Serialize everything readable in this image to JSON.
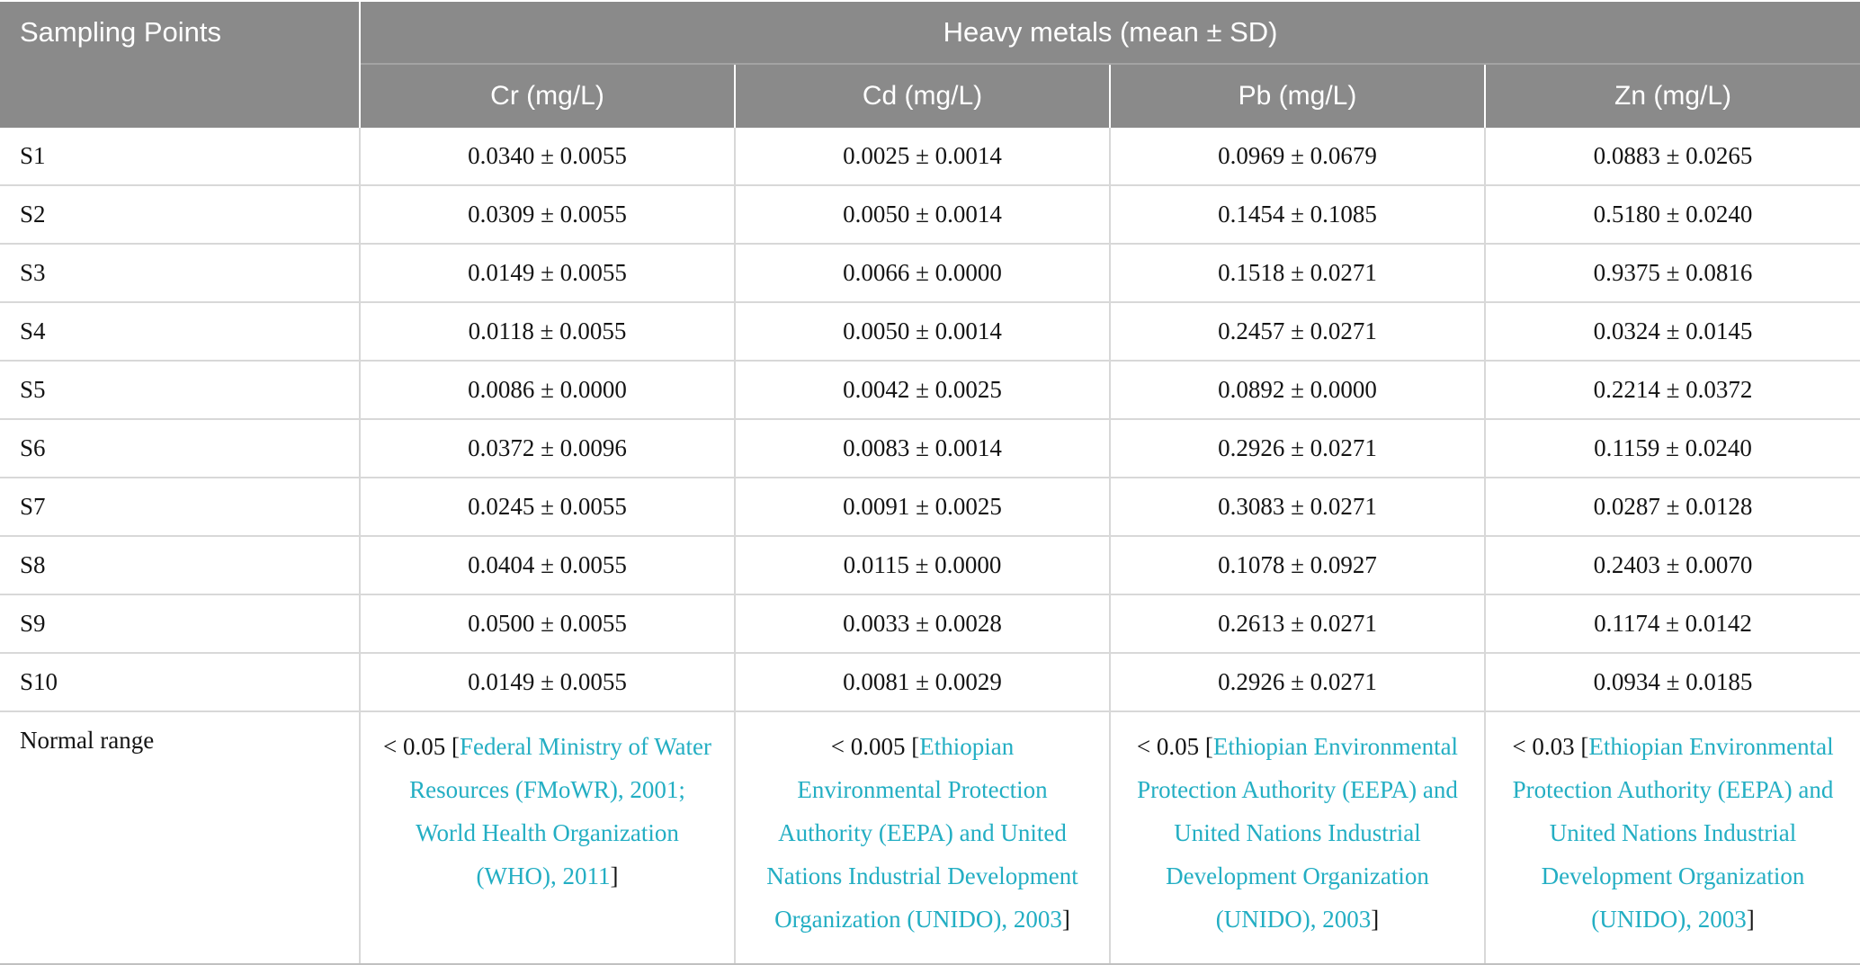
{
  "colors": {
    "header_bg": "#8a8a8a",
    "header_text": "#ffffff",
    "body_text": "#141414",
    "grid_line": "#d8d8d8",
    "reference_link": "#23aec3"
  },
  "table": {
    "header": {
      "sampling_points": "Sampling Points",
      "group": "Heavy metals (mean ± SD)",
      "columns": [
        "Cr (mg/L)",
        "Cd (mg/L)",
        "Pb (mg/L)",
        "Zn (mg/L)"
      ]
    },
    "rows": [
      {
        "label": "S1",
        "values": [
          "0.0340 ± 0.0055",
          "0.0025 ± 0.0014",
          "0.0969 ± 0.0679",
          "0.0883 ± 0.0265"
        ]
      },
      {
        "label": "S2",
        "values": [
          "0.0309 ± 0.0055",
          "0.0050 ± 0.0014",
          "0.1454 ± 0.1085",
          "0.5180 ± 0.0240"
        ]
      },
      {
        "label": "S3",
        "values": [
          "0.0149 ± 0.0055",
          "0.0066 ± 0.0000",
          "0.1518 ± 0.0271",
          "0.9375 ± 0.0816"
        ]
      },
      {
        "label": "S4",
        "values": [
          "0.0118 ± 0.0055",
          "0.0050 ± 0.0014",
          "0.2457 ± 0.0271",
          "0.0324 ± 0.0145"
        ]
      },
      {
        "label": "S5",
        "values": [
          "0.0086 ± 0.0000",
          "0.0042 ± 0.0025",
          "0.0892 ± 0.0000",
          "0.2214 ± 0.0372"
        ]
      },
      {
        "label": "S6",
        "values": [
          "0.0372 ± 0.0096",
          "0.0083 ± 0.0014",
          "0.2926 ± 0.0271",
          "0.1159 ± 0.0240"
        ]
      },
      {
        "label": "S7",
        "values": [
          "0.0245 ± 0.0055",
          "0.0091 ± 0.0025",
          "0.3083 ± 0.0271",
          "0.0287 ± 0.0128"
        ]
      },
      {
        "label": "S8",
        "values": [
          "0.0404 ± 0.0055",
          "0.0115 ± 0.0000",
          "0.1078 ± 0.0927",
          "0.2403 ± 0.0070"
        ]
      },
      {
        "label": "S9",
        "values": [
          "0.0500 ± 0.0055",
          "0.0033 ± 0.0028",
          "0.2613 ± 0.0271",
          "0.1174 ± 0.0142"
        ]
      },
      {
        "label": "S10",
        "values": [
          "0.0149 ± 0.0055",
          "0.0081 ± 0.0029",
          "0.2926 ± 0.0271",
          "0.0934 ± 0.0185"
        ]
      }
    ],
    "normal_range_row": {
      "label": "Normal range",
      "cells": [
        {
          "prefix": "< 0.05 [",
          "reference": "Federal Ministry of Water Resources (FMoWR), 2001; World Health Organization (WHO), 2011",
          "suffix": "]"
        },
        {
          "prefix": "< 0.005 [",
          "reference": "Ethiopian Environmental Protection Authority (EEPA) and United Nations Industrial Development Organization (UNIDO), 2003",
          "suffix": "]"
        },
        {
          "prefix": "< 0.05 [",
          "reference": "Ethiopian Environmental Protection Authority (EEPA) and United Nations Industrial Development Organization (UNIDO), 2003",
          "suffix": "]"
        },
        {
          "prefix": "< 0.03 [",
          "reference": "Ethiopian Environmental Protection Authority (EEPA) and United Nations Industrial Development Organization (UNIDO), 2003",
          "suffix": "]"
        }
      ]
    }
  }
}
